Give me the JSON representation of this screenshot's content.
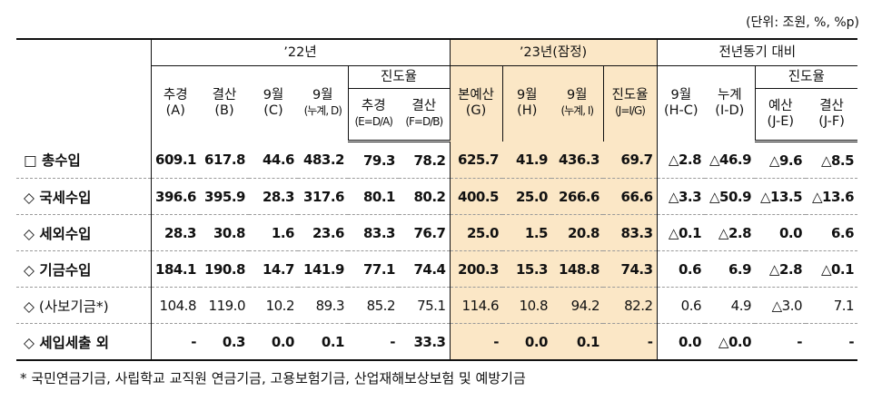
{
  "unit": "(단위: 조원, %, %p)",
  "header": {
    "group_22": "’22년",
    "group_23": "’23년(잠정)",
    "group_yoy": "전년동기 대비",
    "progress_22": "진도율",
    "progress_yoy": "진도율",
    "cols": [
      {
        "l1": "추경",
        "l2": "(A)"
      },
      {
        "l1": "결산",
        "l2": "(B)"
      },
      {
        "l1": "9월",
        "l2": "(C)"
      },
      {
        "l1": "9월",
        "l2": "(누계, D)"
      },
      {
        "l1": "추경",
        "l2": "(E=D/A)"
      },
      {
        "l1": "결산",
        "l2": "(F=D/B)"
      },
      {
        "l1": "본예산",
        "l2": "(G)"
      },
      {
        "l1": "9월",
        "l2": "(H)"
      },
      {
        "l1": "9월",
        "l2": "(누계, I)"
      },
      {
        "l1": "진도율",
        "l2": "(J=I/G)"
      },
      {
        "l1": "9월",
        "l2": "(H-C)"
      },
      {
        "l1": "누계",
        "l2": "(I-D)"
      },
      {
        "l1": "예산",
        "l2": "(J-E)"
      },
      {
        "l1": "결산",
        "l2": "(J-F)"
      }
    ]
  },
  "rows": [
    {
      "label": "□ 총수입",
      "values": [
        "609.1",
        "617.8",
        "44.6",
        "483.2",
        "79.3",
        "78.2",
        "625.7",
        "41.9",
        "436.3",
        "69.7",
        "△2.8",
        "△46.9",
        "△9.6",
        "△8.5"
      ]
    },
    {
      "label": "◇ 국세수입",
      "values": [
        "396.6",
        "395.9",
        "28.3",
        "317.6",
        "80.1",
        "80.2",
        "400.5",
        "25.0",
        "266.6",
        "66.6",
        "△3.3",
        "△50.9",
        "△13.5",
        "△13.6"
      ]
    },
    {
      "label": "◇ 세외수입",
      "values": [
        "28.3",
        "30.8",
        "1.6",
        "23.6",
        "83.3",
        "76.7",
        "25.0",
        "1.5",
        "20.8",
        "83.3",
        "△0.1",
        "△2.8",
        "0.0",
        "6.6"
      ]
    },
    {
      "label": "◇ 기금수입",
      "values": [
        "184.1",
        "190.8",
        "14.7",
        "141.9",
        "77.1",
        "74.4",
        "200.3",
        "15.3",
        "148.8",
        "74.3",
        "0.6",
        "6.9",
        "△2.8",
        "△0.1"
      ]
    },
    {
      "label": "◇ (사보기금*)",
      "values": [
        "104.8",
        "119.0",
        "10.2",
        "89.3",
        "85.2",
        "75.1",
        "114.6",
        "10.8",
        "94.2",
        "82.2",
        "0.6",
        "4.9",
        "△3.0",
        "7.1"
      ]
    },
    {
      "label": "◇ 세입세출 외",
      "values": [
        "-",
        "0.3",
        "0.0",
        "0.1",
        "-",
        "33.3",
        "-",
        "0.0",
        "0.1",
        "-",
        "0.0",
        "△0.0",
        "-",
        "-"
      ]
    }
  ],
  "footnote": "* 국민연금기금, 사립학교 교직원 연금기금, 고용보험기금, 산업재해보상보험 및 예방기금"
}
